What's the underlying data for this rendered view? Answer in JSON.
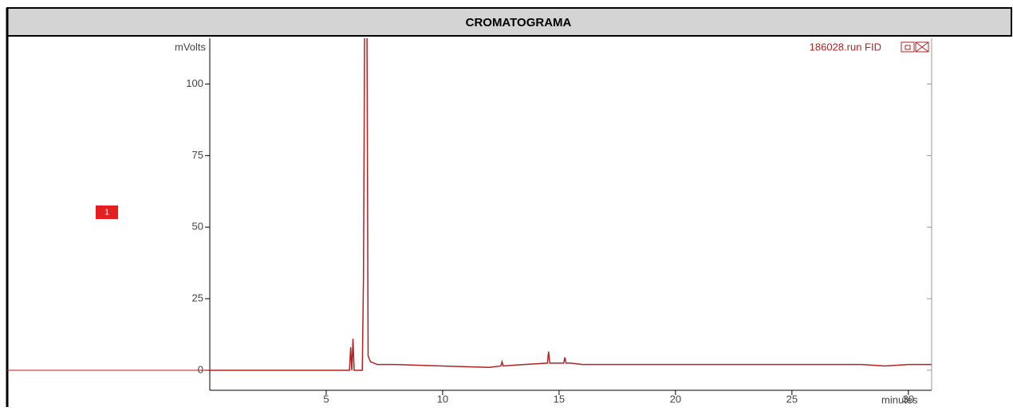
{
  "chart_data": {
    "type": "line",
    "title": "CROMATOGRAMA",
    "ylabel": "mVolts",
    "xlabel": "minutes",
    "marker_label": "1",
    "x": [
      0,
      6.0,
      6.05,
      6.1,
      6.15,
      6.2,
      6.55,
      6.6,
      6.65,
      6.75,
      6.8,
      6.9,
      7.2,
      8,
      10,
      12,
      12.5,
      12.55,
      12.6,
      13.5,
      14.5,
      14.55,
      14.6,
      15.2,
      15.25,
      15.3,
      15.5,
      16,
      20,
      25,
      28,
      29,
      30,
      31
    ],
    "series": [
      {
        "name": "186028.run FID",
        "color": "#b22222",
        "values": [
          0,
          0,
          8,
          0,
          11,
          0,
          0,
          32,
          120,
          120,
          5,
          3,
          2,
          2,
          1.5,
          1,
          1.5,
          3,
          1.5,
          2,
          2.5,
          6.5,
          2.5,
          2.5,
          4.5,
          2.5,
          2.5,
          2,
          2,
          2,
          2,
          1.5,
          2,
          2
        ]
      }
    ],
    "xlim": [
      0,
      31
    ],
    "ylim": [
      -7,
      116
    ],
    "xticks": [
      5,
      10,
      15,
      20,
      25,
      30
    ],
    "yticks": [
      0,
      25,
      50,
      75,
      100
    ]
  }
}
